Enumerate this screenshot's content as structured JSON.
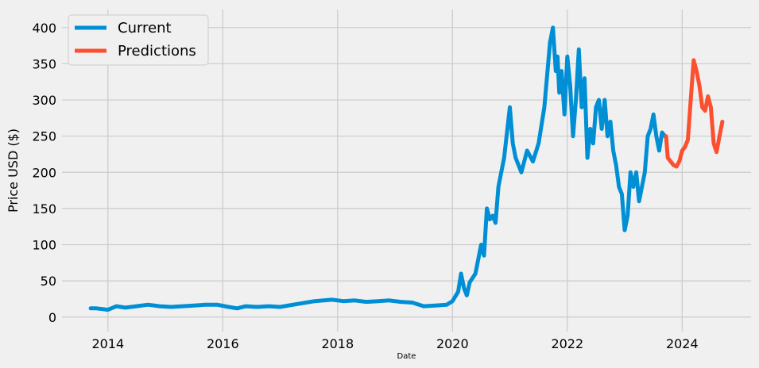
{
  "chart_data": {
    "type": "line",
    "title": "",
    "xlabel": "Date",
    "ylabel": "Price USD ($)",
    "xlim": [
      2013.2,
      2025.2
    ],
    "ylim": [
      -20,
      425
    ],
    "x_ticks": [
      "2014",
      "2016",
      "2018",
      "2020",
      "2022",
      "2024"
    ],
    "x_tick_values": [
      2014,
      2016,
      2018,
      2020,
      2022,
      2024
    ],
    "y_ticks": [
      "0",
      "50",
      "100",
      "150",
      "200",
      "250",
      "300",
      "350",
      "400"
    ],
    "y_tick_values": [
      0,
      50,
      100,
      150,
      200,
      250,
      300,
      350,
      400
    ],
    "grid": true,
    "legend_position": "top-left",
    "colors": {
      "current": "#008fd5",
      "predictions": "#fc4f30",
      "background": "#f0f0f0",
      "grid": "#cbcbcb"
    },
    "series": [
      {
        "name": "Current",
        "x": [
          2013.7,
          2013.8,
          2013.9,
          2014.0,
          2014.15,
          2014.3,
          2014.5,
          2014.7,
          2014.9,
          2015.1,
          2015.3,
          2015.5,
          2015.7,
          2015.9,
          2016.1,
          2016.25,
          2016.4,
          2016.6,
          2016.8,
          2017.0,
          2017.3,
          2017.6,
          2017.9,
          2018.1,
          2018.3,
          2018.5,
          2018.7,
          2018.9,
          2019.1,
          2019.3,
          2019.5,
          2019.7,
          2019.9,
          2020.0,
          2020.1,
          2020.15,
          2020.2,
          2020.25,
          2020.3,
          2020.4,
          2020.5,
          2020.55,
          2020.6,
          2020.65,
          2020.7,
          2020.75,
          2020.8,
          2020.9,
          2021.0,
          2021.05,
          2021.1,
          2021.2,
          2021.3,
          2021.4,
          2021.5,
          2021.6,
          2021.7,
          2021.75,
          2021.8,
          2021.83,
          2021.86,
          2021.9,
          2021.95,
          2022.0,
          2022.05,
          2022.1,
          2022.15,
          2022.2,
          2022.25,
          2022.3,
          2022.35,
          2022.4,
          2022.45,
          2022.5,
          2022.55,
          2022.6,
          2022.65,
          2022.7,
          2022.75,
          2022.8,
          2022.85,
          2022.9,
          2022.95,
          2023.0,
          2023.05,
          2023.1,
          2023.15,
          2023.2,
          2023.25,
          2023.3,
          2023.35,
          2023.4,
          2023.45,
          2023.5,
          2023.55,
          2023.6,
          2023.65,
          2023.7
        ],
        "values": [
          12,
          12,
          11,
          10,
          15,
          13,
          15,
          17,
          15,
          14,
          15,
          16,
          17,
          17,
          14,
          12,
          15,
          14,
          15,
          14,
          18,
          22,
          24,
          22,
          23,
          21,
          22,
          23,
          21,
          20,
          15,
          16,
          17,
          22,
          35,
          60,
          40,
          30,
          48,
          60,
          100,
          85,
          150,
          135,
          140,
          130,
          180,
          220,
          290,
          240,
          220,
          200,
          230,
          215,
          240,
          290,
          380,
          400,
          340,
          360,
          310,
          340,
          280,
          360,
          320,
          250,
          300,
          370,
          290,
          330,
          220,
          260,
          240,
          290,
          300,
          260,
          300,
          250,
          270,
          230,
          210,
          180,
          170,
          120,
          140,
          200,
          180,
          200,
          160,
          180,
          200,
          250,
          260,
          280,
          250,
          230,
          255,
          250
        ]
      },
      {
        "name": "Predictions",
        "x": [
          2023.72,
          2023.75,
          2023.8,
          2023.85,
          2023.9,
          2023.95,
          2024.0,
          2024.05,
          2024.1,
          2024.15,
          2024.2,
          2024.25,
          2024.3,
          2024.35,
          2024.4,
          2024.45,
          2024.5,
          2024.55,
          2024.6,
          2024.65,
          2024.7
        ],
        "values": [
          250,
          220,
          215,
          210,
          208,
          215,
          230,
          235,
          245,
          300,
          355,
          340,
          320,
          290,
          285,
          305,
          290,
          240,
          228,
          250,
          270
        ]
      }
    ]
  }
}
